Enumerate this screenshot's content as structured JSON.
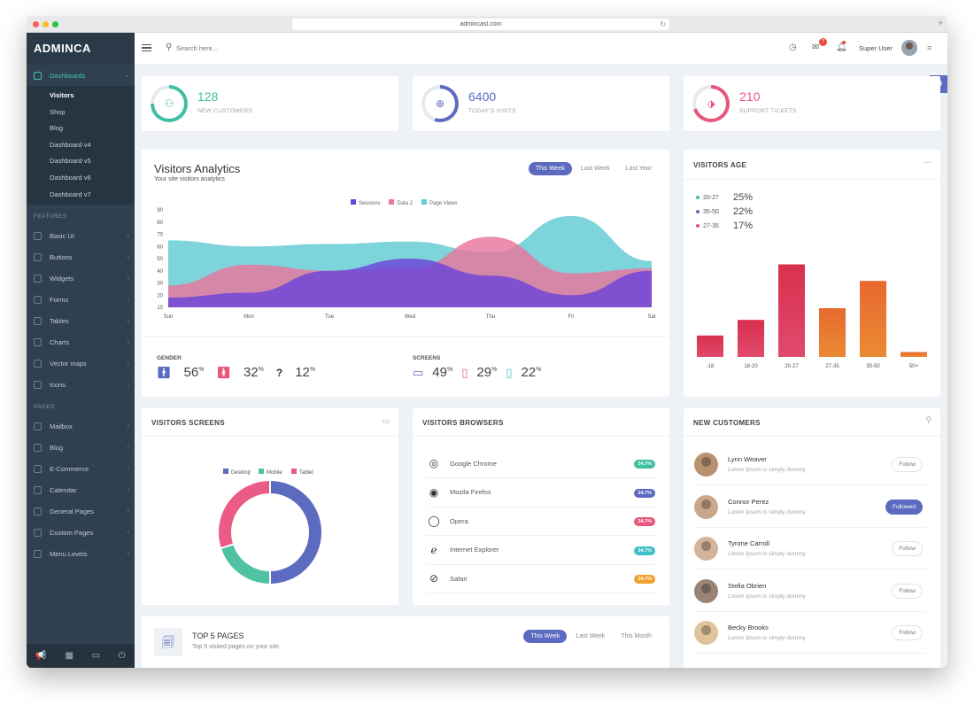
{
  "browser": {
    "url": "admincast.com"
  },
  "sidebar": {
    "brand": "ADMINCA",
    "dashboards": {
      "label": "Dashboards",
      "items": [
        "Visitors",
        "Shop",
        "Blog",
        "Dashboard v4",
        "Dashboard v5",
        "Dashboard v6",
        "Dashboard v7"
      ]
    },
    "features_heading": "FEATURES",
    "features": [
      "Basic UI",
      "Buttons",
      "Widgets",
      "Forms",
      "Tables",
      "Charts",
      "Vector maps",
      "Icons"
    ],
    "pages_heading": "PAGES",
    "pages": [
      "Mailbox",
      "Blog",
      "E-Commerce",
      "Calendar",
      "General Pages",
      "Custom Pages",
      "Menu Levels"
    ]
  },
  "topbar": {
    "search_placeholder": "Search here...",
    "mail_badge": "7",
    "user_name": "Super User"
  },
  "stats": [
    {
      "value": "128",
      "label": "NEW CUSTOMERS",
      "color": "#3fbfa1"
    },
    {
      "value": "6400",
      "label": "TODAY'S VISITS",
      "color": "#5c6bc0"
    },
    {
      "value": "210",
      "label": "SUPPORT TICKETS",
      "color": "#e8567c"
    }
  ],
  "analytics": {
    "title": "Visitors Analytics",
    "subtitle": "Your site visitors analytics",
    "tabs": [
      "This Week",
      "Last Week",
      "Last Year"
    ],
    "legend": [
      "Sessions",
      "Data 2",
      "Page Views"
    ],
    "gender_label": "GENDER",
    "gender": [
      {
        "value": "56",
        "unit": "%"
      },
      {
        "value": "32",
        "unit": "%"
      },
      {
        "value": "12",
        "unit": "%"
      }
    ],
    "screens_label": "SCREENS",
    "screens": [
      {
        "value": "49",
        "unit": "%"
      },
      {
        "value": "29",
        "unit": "%"
      },
      {
        "value": "22",
        "unit": "%"
      }
    ]
  },
  "visitors_age": {
    "title": "VISITORS AGE",
    "more": "...",
    "breakdown": [
      {
        "range": "20-27",
        "value": "25%",
        "color": "#3fbfa1"
      },
      {
        "range": "35-50",
        "value": "22%",
        "color": "#5c6bc0"
      },
      {
        "range": "27-35",
        "value": "17%",
        "color": "#e8567c"
      }
    ]
  },
  "visitors_screens": {
    "title": "VISITORS SCREENS"
  },
  "visitors_browsers": {
    "title": "VISITORS BROWSERS",
    "items": [
      {
        "name": "Google Chrome",
        "badge": "34.7%",
        "color": "#3fbfa1"
      },
      {
        "name": "Mozila Firefox",
        "badge": "34.7%",
        "color": "#5c6bc0"
      },
      {
        "name": "Opera",
        "badge": "34.7%",
        "color": "#e8567c"
      },
      {
        "name": "Internet Explorer",
        "badge": "34.7%",
        "color": "#3fbfc8"
      },
      {
        "name": "Safari",
        "badge": "34.7%",
        "color": "#f0a02f"
      }
    ]
  },
  "new_customers": {
    "title": "NEW CUSTOMERS",
    "items": [
      {
        "name": "Lynn Weaver",
        "sub": "Lorem Ipsum is simply dummy",
        "button": "Follow",
        "followed": false,
        "color": "#b8916f"
      },
      {
        "name": "Connor Perez",
        "sub": "Lorem Ipsum is simply dummy",
        "button": "Followed",
        "followed": true,
        "color": "#c9a78a"
      },
      {
        "name": "Tyrone Carroll",
        "sub": "Lorem Ipsum is simply dummy",
        "button": "Follow",
        "followed": false,
        "color": "#d3b49a"
      },
      {
        "name": "Stella Obrien",
        "sub": "Lorem Ipsum is simply dummy",
        "button": "Follow",
        "followed": false,
        "color": "#9a8477"
      },
      {
        "name": "Becky Brooks",
        "sub": "Lorem Ipsum is simply dummy",
        "button": "Follow",
        "followed": false,
        "color": "#e0c39a"
      }
    ]
  },
  "top_pages": {
    "title": "TOP 5 PAGES",
    "subtitle": "Top 5 visited pages on your site.",
    "tabs": [
      "This Week",
      "Last Week",
      "This Month"
    ]
  },
  "chart_data": [
    {
      "type": "area",
      "categories": [
        "Sun",
        "Mon",
        "Tue",
        "Wed",
        "Thu",
        "Fri",
        "Sat"
      ],
      "ylim": [
        10,
        90
      ],
      "yticks": [
        10,
        20,
        30,
        40,
        50,
        60,
        70,
        80,
        90
      ],
      "series": [
        {
          "name": "Page Views",
          "color": "#62cbd3",
          "values": [
            65,
            60,
            62,
            64,
            55,
            85,
            48
          ]
        },
        {
          "name": "Data 2",
          "color": "#e8769c",
          "values": [
            28,
            45,
            40,
            42,
            68,
            38,
            42
          ]
        },
        {
          "name": "Sessions",
          "color": "#6b44d8",
          "values": [
            18,
            22,
            40,
            50,
            36,
            20,
            40
          ]
        }
      ]
    },
    {
      "type": "bar",
      "categories": [
        "-18",
        "18-20",
        "20-27",
        "27-35",
        "35-50",
        "50+"
      ],
      "values": [
        22,
        38,
        95,
        50,
        78,
        5
      ],
      "ylim": [
        0,
        100
      ]
    },
    {
      "type": "pie",
      "legend": [
        "Desktop",
        "Mobile",
        "Tablet"
      ],
      "values": [
        50,
        20,
        30
      ],
      "colors": [
        "#5c6bc0",
        "#4fc2a3",
        "#ea5b86"
      ]
    }
  ]
}
